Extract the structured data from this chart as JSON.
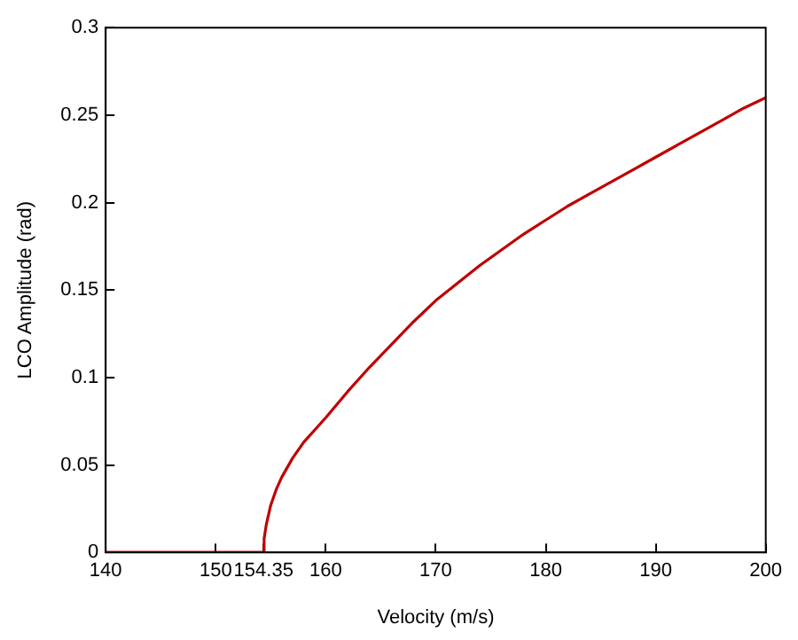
{
  "chart_data": {
    "type": "line",
    "xlabel": "Velocity (m/s)",
    "ylabel": "LCO Amplitude (rad)",
    "x": [
      140,
      145,
      150,
      154.35,
      154.4,
      154.6,
      155,
      155.5,
      156,
      157,
      158,
      160,
      162,
      164,
      166,
      168,
      170,
      172,
      174,
      176,
      178,
      180,
      182,
      184,
      186,
      188,
      190,
      192,
      194,
      196,
      198,
      200
    ],
    "series": [
      {
        "color": "#c00000",
        "values": [
          0,
          0,
          0,
          0,
          0.008,
          0.016,
          0.027,
          0.036,
          0.043,
          0.054,
          0.063,
          0.077,
          0.092,
          0.106,
          0.119,
          0.132,
          0.144,
          0.154,
          0.164,
          0.173,
          0.182,
          0.19,
          0.198,
          0.205,
          0.212,
          0.219,
          0.226,
          0.233,
          0.24,
          0.247,
          0.254,
          0.26
        ]
      }
    ],
    "xlim": [
      140,
      200
    ],
    "xticks": [
      140,
      150,
      154.35,
      160,
      170,
      180,
      190,
      200
    ],
    "ylim": [
      0,
      0.3
    ],
    "yticks": [
      0,
      0.05,
      0.1,
      0.15,
      0.2,
      0.25,
      0.3
    ],
    "grid": false,
    "legend": false,
    "marker": "none",
    "line_style": "solid"
  }
}
